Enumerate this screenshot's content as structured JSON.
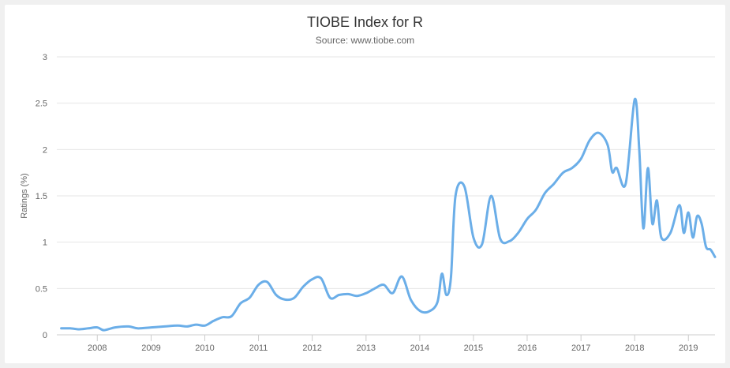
{
  "chart_data": {
    "type": "line",
    "title": "TIOBE Index for R",
    "subtitle": "Source: www.tiobe.com",
    "xlabel": "",
    "ylabel": "Ratings (%)",
    "ylim": [
      0,
      3
    ],
    "xlim": [
      "2007-04-01",
      "2019-07-01"
    ],
    "y_ticks": [
      "0",
      "0.5",
      "1",
      "1.5",
      "2",
      "2.5",
      "3"
    ],
    "x_ticks": [
      "2008",
      "2009",
      "2010",
      "2011",
      "2012",
      "2013",
      "2014",
      "2015",
      "2016",
      "2017",
      "2018",
      "2019"
    ],
    "grid": "horizontal",
    "legend": "none",
    "line_color": "#6baee8",
    "series": [
      {
        "points": [
          [
            "2007-05-01",
            0.07
          ],
          [
            "2007-07-01",
            0.07
          ],
          [
            "2007-09-01",
            0.06
          ],
          [
            "2007-11-01",
            0.07
          ],
          [
            "2008-01-01",
            0.08
          ],
          [
            "2008-02-15",
            0.05
          ],
          [
            "2008-05-01",
            0.08
          ],
          [
            "2008-08-01",
            0.09
          ],
          [
            "2008-10-01",
            0.07
          ],
          [
            "2009-01-01",
            0.08
          ],
          [
            "2009-04-01",
            0.09
          ],
          [
            "2009-07-01",
            0.1
          ],
          [
            "2009-09-01",
            0.09
          ],
          [
            "2009-11-01",
            0.11
          ],
          [
            "2010-01-01",
            0.1
          ],
          [
            "2010-03-01",
            0.15
          ],
          [
            "2010-05-01",
            0.19
          ],
          [
            "2010-07-01",
            0.2
          ],
          [
            "2010-09-01",
            0.34
          ],
          [
            "2010-11-01",
            0.4
          ],
          [
            "2011-01-01",
            0.54
          ],
          [
            "2011-03-01",
            0.57
          ],
          [
            "2011-05-01",
            0.43
          ],
          [
            "2011-07-01",
            0.38
          ],
          [
            "2011-09-01",
            0.4
          ],
          [
            "2011-11-01",
            0.52
          ],
          [
            "2012-01-01",
            0.6
          ],
          [
            "2012-03-01",
            0.61
          ],
          [
            "2012-05-01",
            0.4
          ],
          [
            "2012-07-01",
            0.43
          ],
          [
            "2012-09-01",
            0.44
          ],
          [
            "2012-11-01",
            0.42
          ],
          [
            "2013-01-01",
            0.45
          ],
          [
            "2013-03-01",
            0.5
          ],
          [
            "2013-05-01",
            0.54
          ],
          [
            "2013-07-01",
            0.45
          ],
          [
            "2013-09-01",
            0.63
          ],
          [
            "2013-11-01",
            0.38
          ],
          [
            "2014-01-01",
            0.26
          ],
          [
            "2014-03-01",
            0.25
          ],
          [
            "2014-05-01",
            0.35
          ],
          [
            "2014-06-01",
            0.66
          ],
          [
            "2014-07-01",
            0.43
          ],
          [
            "2014-08-01",
            0.62
          ],
          [
            "2014-09-01",
            1.5
          ],
          [
            "2014-11-01",
            1.6
          ],
          [
            "2015-01-01",
            1.05
          ],
          [
            "2015-03-01",
            0.98
          ],
          [
            "2015-05-01",
            1.5
          ],
          [
            "2015-07-01",
            1.04
          ],
          [
            "2015-09-01",
            1.01
          ],
          [
            "2015-11-01",
            1.1
          ],
          [
            "2016-01-01",
            1.25
          ],
          [
            "2016-03-01",
            1.35
          ],
          [
            "2016-05-01",
            1.53
          ],
          [
            "2016-07-01",
            1.63
          ],
          [
            "2016-09-01",
            1.75
          ],
          [
            "2016-11-01",
            1.8
          ],
          [
            "2017-01-01",
            1.9
          ],
          [
            "2017-03-01",
            2.1
          ],
          [
            "2017-05-01",
            2.18
          ],
          [
            "2017-07-01",
            2.05
          ],
          [
            "2017-08-01",
            1.76
          ],
          [
            "2017-09-01",
            1.8
          ],
          [
            "2017-11-01",
            1.63
          ],
          [
            "2018-01-01",
            2.54
          ],
          [
            "2018-02-01",
            2.0
          ],
          [
            "2018-03-01",
            1.15
          ],
          [
            "2018-04-01",
            1.8
          ],
          [
            "2018-05-01",
            1.2
          ],
          [
            "2018-06-01",
            1.45
          ],
          [
            "2018-07-01",
            1.05
          ],
          [
            "2018-09-01",
            1.1
          ],
          [
            "2018-11-01",
            1.4
          ],
          [
            "2018-12-01",
            1.1
          ],
          [
            "2019-01-01",
            1.32
          ],
          [
            "2019-02-01",
            1.05
          ],
          [
            "2019-03-01",
            1.28
          ],
          [
            "2019-04-01",
            1.2
          ],
          [
            "2019-05-01",
            0.95
          ],
          [
            "2019-06-01",
            0.92
          ],
          [
            "2019-07-01",
            0.84
          ]
        ]
      }
    ]
  }
}
